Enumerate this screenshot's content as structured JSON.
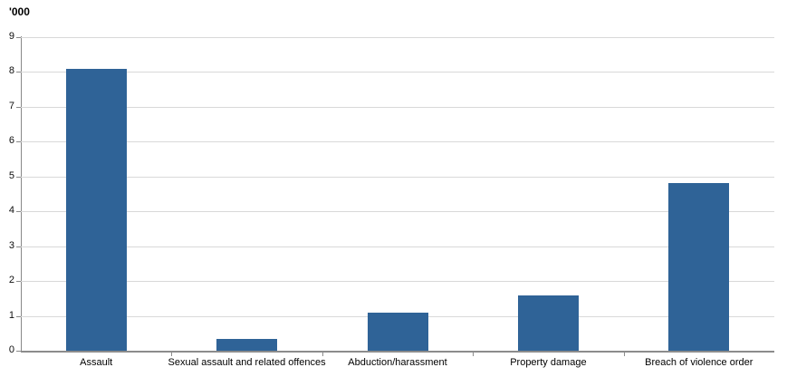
{
  "chart_data": {
    "type": "bar",
    "title": "",
    "xlabel": "",
    "ylabel": "'000",
    "categories": [
      "Assault",
      "Sexual assault and related offences",
      "Abduction/harassment",
      "Property damage",
      "Breach of violence order"
    ],
    "values": [
      8.1,
      0.35,
      1.1,
      1.6,
      4.8
    ],
    "ylim": [
      0,
      9
    ],
    "yticks": [
      0,
      1,
      2,
      3,
      4,
      5,
      6,
      7,
      8,
      9
    ],
    "grid": "horizontal",
    "legend": "none",
    "bar_color": "#2f6397"
  },
  "colors": {
    "bar": "#2f6397",
    "gridline": "#d9d9d9",
    "axis": "#8c8c8c",
    "text": "#000000"
  }
}
